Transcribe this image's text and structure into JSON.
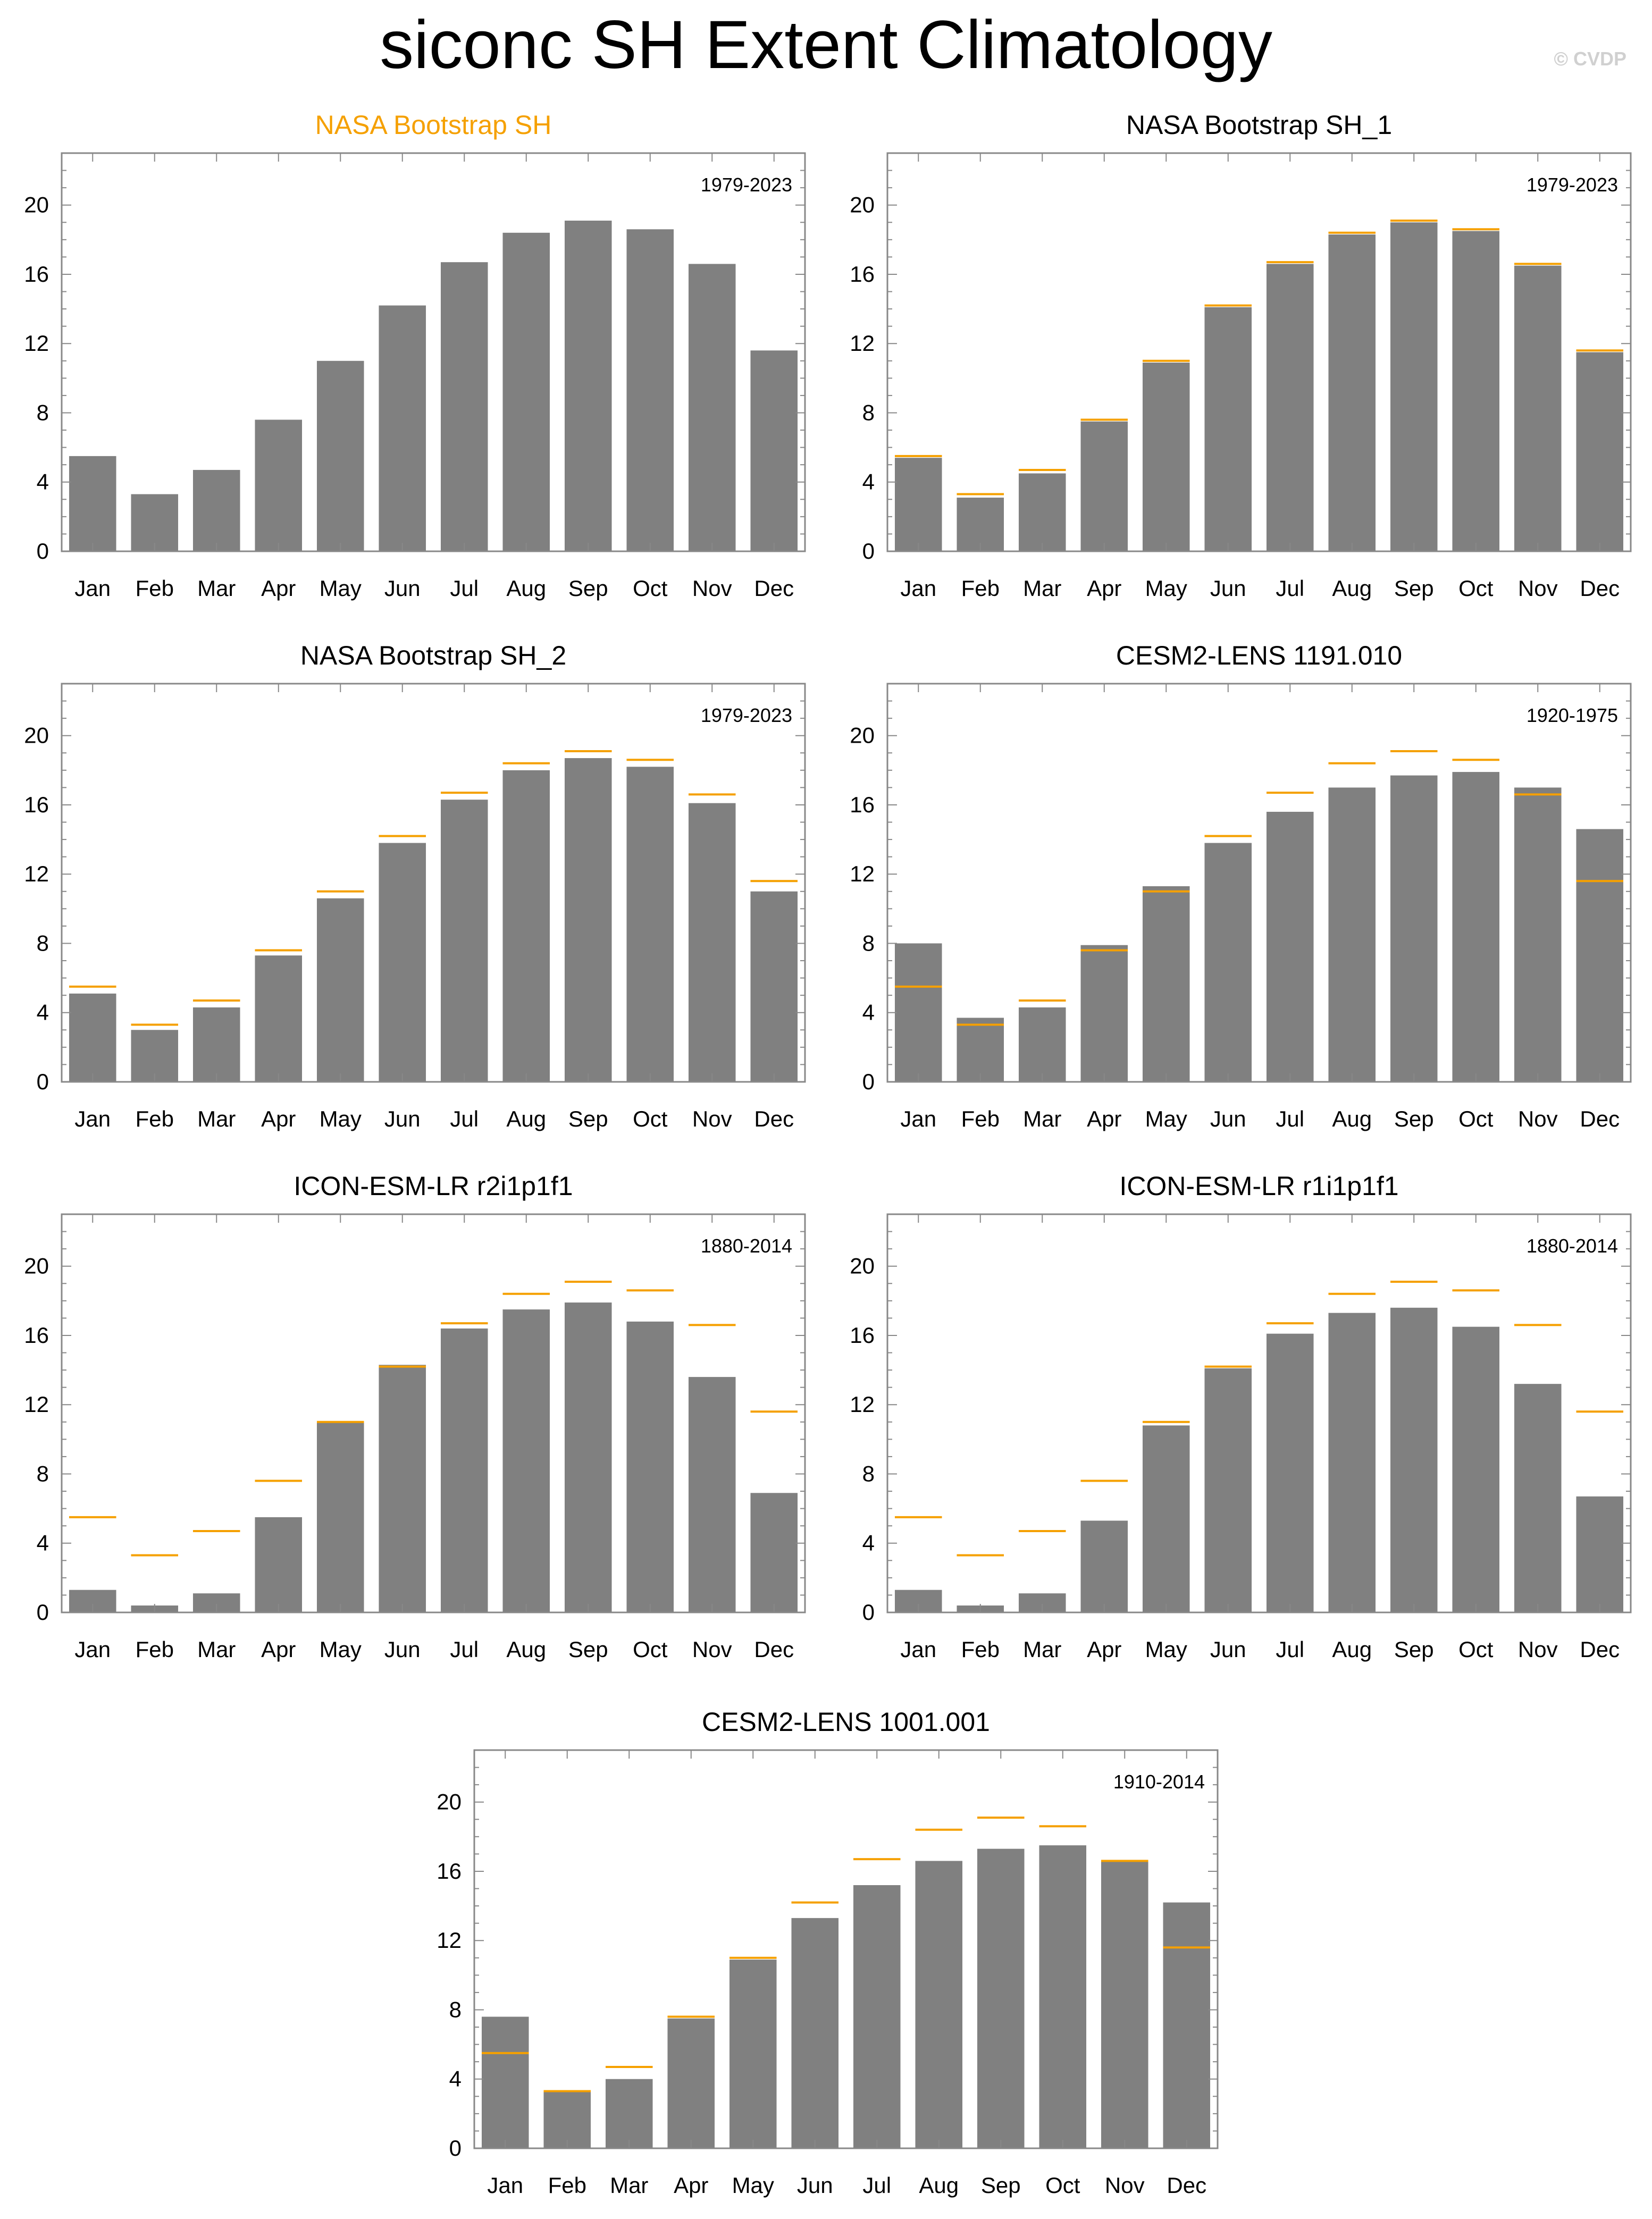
{
  "title": "siconc SH Extent Climatology",
  "watermark": "© CVDP",
  "colors": {
    "bar": "#808080",
    "reference": "#f5a000",
    "title_highlight": "#f5a000",
    "axis": "#000000"
  },
  "chart_data": [
    {
      "type": "bar",
      "title": "NASA Bootstrap SH",
      "title_color": "#f5a000",
      "period": "1979-2023",
      "categories": [
        "Jan",
        "Feb",
        "Mar",
        "Apr",
        "May",
        "Jun",
        "Jul",
        "Aug",
        "Sep",
        "Oct",
        "Nov",
        "Dec"
      ],
      "values": [
        5.5,
        3.3,
        4.7,
        7.6,
        11.0,
        14.2,
        16.7,
        18.4,
        19.1,
        18.6,
        16.6,
        11.6
      ],
      "reference": [],
      "ylim": [
        0,
        23
      ],
      "yticks": [
        0,
        4,
        8,
        12,
        16,
        20
      ],
      "xlabel": "",
      "ylabel": ""
    },
    {
      "type": "bar",
      "title": "NASA Bootstrap SH_1",
      "title_color": "#000000",
      "period": "1979-2023",
      "categories": [
        "Jan",
        "Feb",
        "Mar",
        "Apr",
        "May",
        "Jun",
        "Jul",
        "Aug",
        "Sep",
        "Oct",
        "Nov",
        "Dec"
      ],
      "values": [
        5.4,
        3.1,
        4.5,
        7.5,
        10.9,
        14.1,
        16.6,
        18.3,
        19.0,
        18.5,
        16.5,
        11.5
      ],
      "reference": [
        5.5,
        3.3,
        4.7,
        7.6,
        11.0,
        14.2,
        16.7,
        18.4,
        19.1,
        18.6,
        16.6,
        11.6
      ],
      "ylim": [
        0,
        23
      ],
      "yticks": [
        0,
        4,
        8,
        12,
        16,
        20
      ],
      "xlabel": "",
      "ylabel": ""
    },
    {
      "type": "bar",
      "title": "NASA Bootstrap SH_2",
      "title_color": "#000000",
      "period": "1979-2023",
      "categories": [
        "Jan",
        "Feb",
        "Mar",
        "Apr",
        "May",
        "Jun",
        "Jul",
        "Aug",
        "Sep",
        "Oct",
        "Nov",
        "Dec"
      ],
      "values": [
        5.1,
        3.0,
        4.3,
        7.3,
        10.6,
        13.8,
        16.3,
        18.0,
        18.7,
        18.2,
        16.1,
        11.0
      ],
      "reference": [
        5.5,
        3.3,
        4.7,
        7.6,
        11.0,
        14.2,
        16.7,
        18.4,
        19.1,
        18.6,
        16.6,
        11.6
      ],
      "ylim": [
        0,
        23
      ],
      "yticks": [
        0,
        4,
        8,
        12,
        16,
        20
      ],
      "xlabel": "",
      "ylabel": ""
    },
    {
      "type": "bar",
      "title": "CESM2-LENS 1191.010",
      "title_color": "#000000",
      "period": "1920-1975",
      "categories": [
        "Jan",
        "Feb",
        "Mar",
        "Apr",
        "May",
        "Jun",
        "Jul",
        "Aug",
        "Sep",
        "Oct",
        "Nov",
        "Dec"
      ],
      "values": [
        8.0,
        3.7,
        4.3,
        7.9,
        11.3,
        13.8,
        15.6,
        17.0,
        17.7,
        17.9,
        17.0,
        14.6
      ],
      "reference": [
        5.5,
        3.3,
        4.7,
        7.6,
        11.0,
        14.2,
        16.7,
        18.4,
        19.1,
        18.6,
        16.6,
        11.6
      ],
      "ylim": [
        0,
        23
      ],
      "yticks": [
        0,
        4,
        8,
        12,
        16,
        20
      ],
      "xlabel": "",
      "ylabel": ""
    },
    {
      "type": "bar",
      "title": "ICON-ESM-LR r2i1p1f1",
      "title_color": "#000000",
      "period": "1880-2014",
      "categories": [
        "Jan",
        "Feb",
        "Mar",
        "Apr",
        "May",
        "Jun",
        "Jul",
        "Aug",
        "Sep",
        "Oct",
        "Nov",
        "Dec"
      ],
      "values": [
        1.3,
        0.4,
        1.1,
        5.5,
        11.0,
        14.3,
        16.4,
        17.5,
        17.9,
        16.8,
        13.6,
        6.9
      ],
      "reference": [
        5.5,
        3.3,
        4.7,
        7.6,
        11.0,
        14.2,
        16.7,
        18.4,
        19.1,
        18.6,
        16.6,
        11.6
      ],
      "ylim": [
        0,
        23
      ],
      "yticks": [
        0,
        4,
        8,
        12,
        16,
        20
      ],
      "xlabel": "",
      "ylabel": ""
    },
    {
      "type": "bar",
      "title": "ICON-ESM-LR r1i1p1f1",
      "title_color": "#000000",
      "period": "1880-2014",
      "categories": [
        "Jan",
        "Feb",
        "Mar",
        "Apr",
        "May",
        "Jun",
        "Jul",
        "Aug",
        "Sep",
        "Oct",
        "Nov",
        "Dec"
      ],
      "values": [
        1.3,
        0.4,
        1.1,
        5.3,
        10.8,
        14.1,
        16.1,
        17.3,
        17.6,
        16.5,
        13.2,
        6.7
      ],
      "reference": [
        5.5,
        3.3,
        4.7,
        7.6,
        11.0,
        14.2,
        16.7,
        18.4,
        19.1,
        18.6,
        16.6,
        11.6
      ],
      "ylim": [
        0,
        23
      ],
      "yticks": [
        0,
        4,
        8,
        12,
        16,
        20
      ],
      "xlabel": "",
      "ylabel": ""
    },
    {
      "type": "bar",
      "title": "CESM2-LENS 1001.001",
      "title_color": "#000000",
      "period": "1910-2014",
      "categories": [
        "Jan",
        "Feb",
        "Mar",
        "Apr",
        "May",
        "Jun",
        "Jul",
        "Aug",
        "Sep",
        "Oct",
        "Nov",
        "Dec"
      ],
      "values": [
        7.6,
        3.3,
        4.0,
        7.5,
        10.9,
        13.3,
        15.2,
        16.6,
        17.3,
        17.5,
        16.6,
        14.2
      ],
      "reference": [
        5.5,
        3.3,
        4.7,
        7.6,
        11.0,
        14.2,
        16.7,
        18.4,
        19.1,
        18.6,
        16.6,
        11.6
      ],
      "ylim": [
        0,
        23
      ],
      "yticks": [
        0,
        4,
        8,
        12,
        16,
        20
      ],
      "xlabel": "",
      "ylabel": ""
    }
  ]
}
